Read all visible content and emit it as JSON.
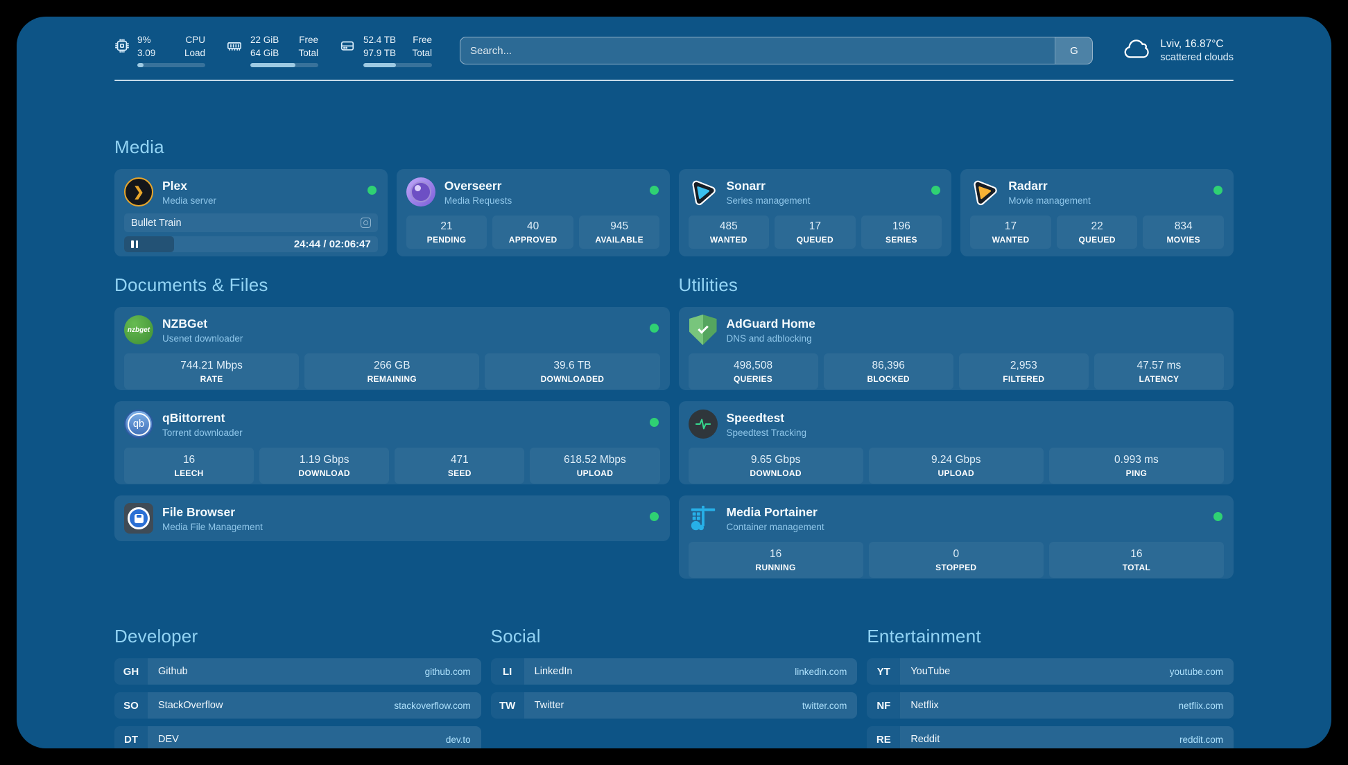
{
  "colors": {
    "page_bg": "#0d5486",
    "status_online": "#2fd173",
    "section_header_text": "#93d4f4",
    "plex_amber": "#e8a62b",
    "overseerr_purple": "#7a5cd8",
    "sonarr_blue": "#3ac0ef",
    "radarr_orange": "#f9b234",
    "nzbget_green": "#4f9f3f",
    "qbittorrent_blue": "#3b6cb5",
    "adguard_green": "#68b56f",
    "speedtest_pulse_green": "#35d98e",
    "portainer_blue": "#27b0e8"
  },
  "header": {
    "system": [
      {
        "icon": "cpu-icon",
        "values": [
          "9%",
          "3.09"
        ],
        "labels": [
          "CPU",
          "Load"
        ],
        "progress_pct": 9
      },
      {
        "icon": "ram-icon",
        "values": [
          "22 GiB",
          "64 GiB"
        ],
        "labels": [
          "Free",
          "Total"
        ],
        "progress_pct": 66
      },
      {
        "icon": "disk-icon",
        "values": [
          "52.4 TB",
          "97.9 TB"
        ],
        "labels": [
          "Free",
          "Total"
        ],
        "progress_pct": 47
      }
    ],
    "search": {
      "placeholder": "Search...",
      "engine_button": "G"
    },
    "weather": {
      "icon": "cloud-icon",
      "summary": "Lviv, 16.87°C",
      "condition": "scattered clouds"
    }
  },
  "media": {
    "title": "Media",
    "plex": {
      "icon": "plex-icon",
      "title": "Plex",
      "subtitle": "Media server",
      "status": "online",
      "now_playing": "Bullet Train",
      "state": "paused",
      "time_display": "24:44 / 02:06:47",
      "progress_pct": 19.6
    },
    "overseerr": {
      "icon": "overseerr-icon",
      "title": "Overseerr",
      "subtitle": "Media Requests",
      "status": "online",
      "stats": [
        {
          "value": "21",
          "label": "PENDING"
        },
        {
          "value": "40",
          "label": "APPROVED"
        },
        {
          "value": "945",
          "label": "AVAILABLE"
        }
      ]
    },
    "sonarr": {
      "icon": "sonarr-icon",
      "title": "Sonarr",
      "subtitle": "Series management",
      "status": "online",
      "stats": [
        {
          "value": "485",
          "label": "WANTED"
        },
        {
          "value": "17",
          "label": "QUEUED"
        },
        {
          "value": "196",
          "label": "SERIES"
        }
      ]
    },
    "radarr": {
      "icon": "radarr-icon",
      "title": "Radarr",
      "subtitle": "Movie management",
      "status": "online",
      "stats": [
        {
          "value": "17",
          "label": "WANTED"
        },
        {
          "value": "22",
          "label": "QUEUED"
        },
        {
          "value": "834",
          "label": "MOVIES"
        }
      ]
    }
  },
  "documents": {
    "title": "Documents & Files",
    "nzbget": {
      "icon": "nzbget-icon",
      "title": "NZBGet",
      "subtitle": "Usenet downloader",
      "status": "online",
      "stats": [
        {
          "value": "744.21 Mbps",
          "label": "RATE"
        },
        {
          "value": "266 GB",
          "label": "REMAINING"
        },
        {
          "value": "39.6 TB",
          "label": "DOWNLOADED"
        }
      ]
    },
    "qbittorrent": {
      "icon": "qbittorrent-icon",
      "title": "qBittorrent",
      "subtitle": "Torrent downloader",
      "status": "online",
      "stats": [
        {
          "value": "16",
          "label": "LEECH"
        },
        {
          "value": "1.19 Gbps",
          "label": "DOWNLOAD"
        },
        {
          "value": "471",
          "label": "SEED"
        },
        {
          "value": "618.52 Mbps",
          "label": "UPLOAD"
        }
      ]
    },
    "filebrowser": {
      "icon": "filebrowser-icon",
      "title": "File Browser",
      "subtitle": "Media File Management",
      "status": "online"
    }
  },
  "utilities": {
    "title": "Utilities",
    "adguard": {
      "icon": "adguard-icon",
      "title": "AdGuard Home",
      "subtitle": "DNS and adblocking",
      "status": "online",
      "stats": [
        {
          "value": "498,508",
          "label": "QUERIES"
        },
        {
          "value": "86,396",
          "label": "BLOCKED"
        },
        {
          "value": "2,953",
          "label": "FILTERED"
        },
        {
          "value": "47.57 ms",
          "label": "LATENCY"
        }
      ]
    },
    "speedtest": {
      "icon": "speedtest-icon",
      "title": "Speedtest",
      "subtitle": "Speedtest Tracking",
      "status": "online",
      "stats": [
        {
          "value": "9.65 Gbps",
          "label": "DOWNLOAD"
        },
        {
          "value": "9.24 Gbps",
          "label": "UPLOAD"
        },
        {
          "value": "0.993 ms",
          "label": "PING"
        }
      ]
    },
    "portainer": {
      "icon": "portainer-icon",
      "title": "Media Portainer",
      "subtitle": "Container management",
      "status": "online",
      "stats": [
        {
          "value": "16",
          "label": "RUNNING"
        },
        {
          "value": "0",
          "label": "STOPPED"
        },
        {
          "value": "16",
          "label": "TOTAL"
        }
      ]
    }
  },
  "bookmarks": [
    {
      "title": "Developer",
      "links": [
        {
          "abbr": "GH",
          "name": "Github",
          "url": "github.com"
        },
        {
          "abbr": "SO",
          "name": "StackOverflow",
          "url": "stackoverflow.com"
        },
        {
          "abbr": "DT",
          "name": "DEV",
          "url": "dev.to"
        }
      ]
    },
    {
      "title": "Social",
      "links": [
        {
          "abbr": "LI",
          "name": "LinkedIn",
          "url": "linkedin.com"
        },
        {
          "abbr": "TW",
          "name": "Twitter",
          "url": "twitter.com"
        }
      ]
    },
    {
      "title": "Entertainment",
      "links": [
        {
          "abbr": "YT",
          "name": "YouTube",
          "url": "youtube.com"
        },
        {
          "abbr": "NF",
          "name": "Netflix",
          "url": "netflix.com"
        },
        {
          "abbr": "RE",
          "name": "Reddit",
          "url": "reddit.com"
        }
      ]
    }
  ]
}
